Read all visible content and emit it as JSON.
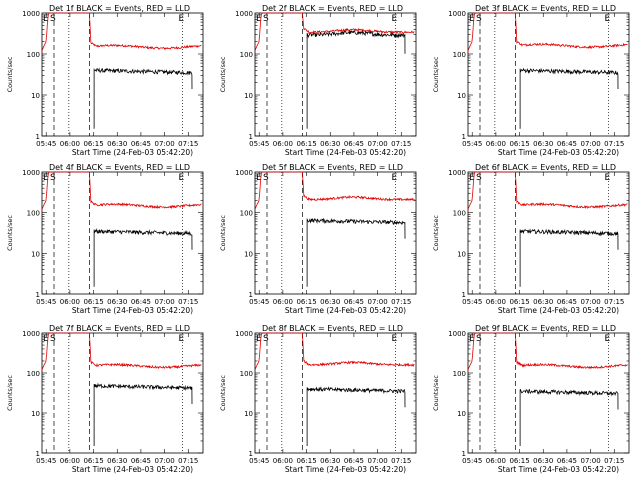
{
  "chart_data": [
    {
      "type": "line",
      "title": "Det 1f BLACK = Events, RED = LLD",
      "detector": "1f",
      "xlabel": "Start Time (24-Feb-03 05:42:20)",
      "ylabel": "Counts/sec",
      "yscale": "log",
      "ylim": [
        1,
        1000
      ],
      "xlim_minutes": [
        0,
        102
      ],
      "xticks": [
        "05:45",
        "06:00",
        "06:15",
        "06:30",
        "06:45",
        "07:00",
        "07:15"
      ],
      "yticks": [
        "1",
        "10",
        "100",
        "1000"
      ],
      "markers": {
        "E_left": "E",
        "S": "S",
        "E_right": "E"
      },
      "series": [
        {
          "name": "RED = LLD",
          "color": "#e00000",
          "level_after": 150,
          "profile": "flat"
        },
        {
          "name": "BLACK = Events",
          "color": "#000000",
          "level_after": 40,
          "profile": "flat"
        }
      ]
    },
    {
      "type": "line",
      "title": "Det 2f BLACK = Events, RED = LLD",
      "detector": "2f",
      "xlabel": "Start Time (24-Feb-03 05:42:20)",
      "ylabel": "Counts/sec",
      "yscale": "log",
      "ylim": [
        1,
        1000
      ],
      "xlim_minutes": [
        0,
        102
      ],
      "xticks": [
        "05:45",
        "06:00",
        "06:15",
        "06:30",
        "06:45",
        "07:00",
        "07:15"
      ],
      "yticks": [
        "1",
        "10",
        "100",
        "1000"
      ],
      "markers": {
        "E_left": "E",
        "S": "S",
        "E_right": "E"
      },
      "series": [
        {
          "name": "RED = LLD",
          "color": "#e00000",
          "level_after": 340,
          "profile": "hump"
        },
        {
          "name": "BLACK = Events",
          "color": "#000000",
          "level_after": 290,
          "profile": "hump"
        }
      ]
    },
    {
      "type": "line",
      "title": "Det 3f BLACK = Events, RED = LLD",
      "detector": "3f",
      "xlabel": "Start Time (24-Feb-03 05:42:20)",
      "ylabel": "Counts/sec",
      "yscale": "log",
      "ylim": [
        1,
        1000
      ],
      "xlim_minutes": [
        0,
        102
      ],
      "xticks": [
        "05:45",
        "06:00",
        "06:15",
        "06:30",
        "06:45",
        "07:00",
        "07:15"
      ],
      "yticks": [
        "1",
        "10",
        "100",
        "1000"
      ],
      "markers": {
        "E_left": "E",
        "S": "S",
        "E_right": "E"
      },
      "series": [
        {
          "name": "RED = LLD",
          "color": "#e00000",
          "level_after": 160,
          "profile": "flat"
        },
        {
          "name": "BLACK = Events",
          "color": "#000000",
          "level_after": 40,
          "profile": "flat"
        }
      ]
    },
    {
      "type": "line",
      "title": "Det 4f BLACK = Events, RED = LLD",
      "detector": "4f",
      "xlabel": "Start Time (24-Feb-03 05:42:20)",
      "ylabel": "Counts/sec",
      "yscale": "log",
      "ylim": [
        1,
        1000
      ],
      "xlim_minutes": [
        0,
        102
      ],
      "xticks": [
        "05:45",
        "06:00",
        "06:15",
        "06:30",
        "06:45",
        "07:00",
        "07:15"
      ],
      "yticks": [
        "1",
        "10",
        "100",
        "1000"
      ],
      "markers": {
        "E_left": "E",
        "S": "S",
        "E_right": "E"
      },
      "series": [
        {
          "name": "RED = LLD",
          "color": "#e00000",
          "level_after": 150,
          "profile": "flat"
        },
        {
          "name": "BLACK = Events",
          "color": "#000000",
          "level_after": 35,
          "profile": "flat"
        }
      ]
    },
    {
      "type": "line",
      "title": "Det 5f BLACK = Events, RED = LLD",
      "detector": "5f",
      "xlabel": "Start Time (24-Feb-03 05:42:20)",
      "ylabel": "Counts/sec",
      "yscale": "log",
      "ylim": [
        1,
        1000
      ],
      "xlim_minutes": [
        0,
        102
      ],
      "xticks": [
        "05:45",
        "06:00",
        "06:15",
        "06:30",
        "06:45",
        "07:00",
        "07:15"
      ],
      "yticks": [
        "1",
        "10",
        "100",
        "1000"
      ],
      "markers": {
        "E_left": "E",
        "S": "S",
        "E_right": "E"
      },
      "series": [
        {
          "name": "RED = LLD",
          "color": "#e00000",
          "level_after": 210,
          "profile": "hump"
        },
        {
          "name": "BLACK = Events",
          "color": "#000000",
          "level_after": 65,
          "profile": "flat"
        }
      ]
    },
    {
      "type": "line",
      "title": "Det 6f BLACK = Events, RED = LLD",
      "detector": "6f",
      "xlabel": "Start Time (24-Feb-03 05:42:20)",
      "ylabel": "Counts/sec",
      "yscale": "log",
      "ylim": [
        1,
        1000
      ],
      "xlim_minutes": [
        0,
        102
      ],
      "xticks": [
        "05:45",
        "06:00",
        "06:15",
        "06:30",
        "06:45",
        "07:00",
        "07:15"
      ],
      "yticks": [
        "1",
        "10",
        "100",
        "1000"
      ],
      "markers": {
        "E_left": "E",
        "S": "S",
        "E_right": "E"
      },
      "series": [
        {
          "name": "RED = LLD",
          "color": "#e00000",
          "level_after": 150,
          "profile": "flat"
        },
        {
          "name": "BLACK = Events",
          "color": "#000000",
          "level_after": 35,
          "profile": "flat"
        }
      ]
    },
    {
      "type": "line",
      "title": "Det 7f BLACK = Events, RED = LLD",
      "detector": "7f",
      "xlabel": "Start Time (24-Feb-03 05:42:20)",
      "ylabel": "Counts/sec",
      "yscale": "log",
      "ylim": [
        1,
        1000
      ],
      "xlim_minutes": [
        0,
        102
      ],
      "xticks": [
        "05:45",
        "06:00",
        "06:15",
        "06:30",
        "06:45",
        "07:00",
        "07:15"
      ],
      "yticks": [
        "1",
        "10",
        "100",
        "1000"
      ],
      "markers": {
        "E_left": "E",
        "S": "S",
        "E_right": "E"
      },
      "series": [
        {
          "name": "RED = LLD",
          "color": "#e00000",
          "level_after": 150,
          "profile": "flat"
        },
        {
          "name": "BLACK = Events",
          "color": "#000000",
          "level_after": 48,
          "profile": "flat"
        }
      ]
    },
    {
      "type": "line",
      "title": "Det 8f BLACK = Events, RED = LLD",
      "detector": "8f",
      "xlabel": "Start Time (24-Feb-03 05:42:20)",
      "ylabel": "Counts/sec",
      "yscale": "log",
      "ylim": [
        1,
        1000
      ],
      "xlim_minutes": [
        0,
        102
      ],
      "xticks": [
        "05:45",
        "06:00",
        "06:15",
        "06:30",
        "06:45",
        "07:00",
        "07:15"
      ],
      "yticks": [
        "1",
        "10",
        "100",
        "1000"
      ],
      "markers": {
        "E_left": "E",
        "S": "S",
        "E_right": "E"
      },
      "series": [
        {
          "name": "RED = LLD",
          "color": "#e00000",
          "level_after": 160,
          "profile": "hump"
        },
        {
          "name": "BLACK = Events",
          "color": "#000000",
          "level_after": 40,
          "profile": "flat"
        }
      ]
    },
    {
      "type": "line",
      "title": "Det 9f BLACK = Events, RED = LLD",
      "detector": "9f",
      "xlabel": "Start Time (24-Feb-03 05:42:20)",
      "ylabel": "Counts/sec",
      "yscale": "log",
      "ylim": [
        1,
        1000
      ],
      "xlim_minutes": [
        0,
        102
      ],
      "xticks": [
        "05:45",
        "06:00",
        "06:15",
        "06:30",
        "06:45",
        "07:00",
        "07:15"
      ],
      "yticks": [
        "1",
        "10",
        "100",
        "1000"
      ],
      "markers": {
        "E_left": "E",
        "S": "S",
        "E_right": "E"
      },
      "series": [
        {
          "name": "RED = LLD",
          "color": "#e00000",
          "level_after": 150,
          "profile": "flat"
        },
        {
          "name": "BLACK = Events",
          "color": "#000000",
          "level_after": 35,
          "profile": "flat"
        }
      ]
    }
  ],
  "event_times_minutes": {
    "flare_peak": 6,
    "dash_left": 7.6,
    "dot_left": 17,
    "dash_mid": 30,
    "dot_right": 102,
    "dash_right": 102,
    "black_start": 33,
    "black_end": 95
  }
}
